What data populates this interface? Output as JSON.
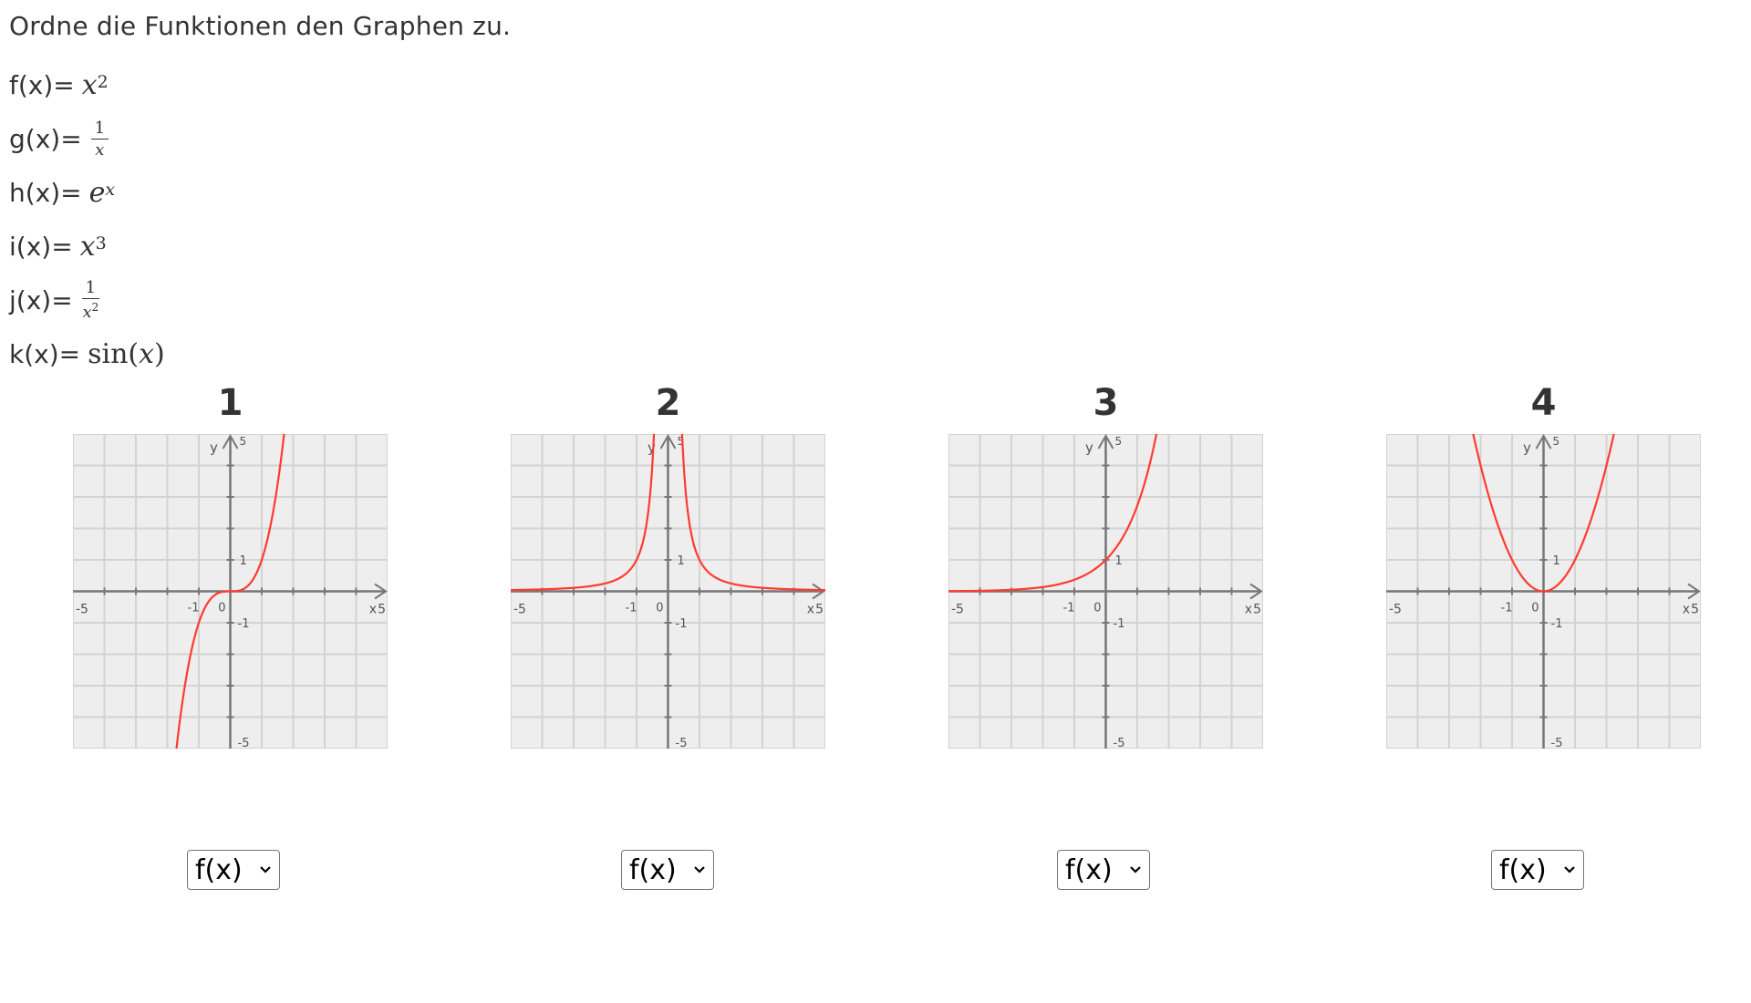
{
  "prompt": "Ordne die Funktionen den Graphen zu.",
  "functions": [
    {
      "label": "f(x)=",
      "expr": "x²"
    },
    {
      "label": "g(x)=",
      "expr": "1/x"
    },
    {
      "label": "h(x)=",
      "expr": "eˣ"
    },
    {
      "label": "i(x)=",
      "expr": "x³"
    },
    {
      "label": "j(x)=",
      "expr": "1/x²"
    },
    {
      "label": "k(x)=",
      "expr": "sin(x)"
    }
  ],
  "graphs": [
    {
      "title": "1",
      "curve": "cubic",
      "select_value": "f(x)"
    },
    {
      "title": "2",
      "curve": "inverse-square",
      "select_value": "f(x)"
    },
    {
      "title": "3",
      "curve": "exponential",
      "select_value": "f(x)"
    },
    {
      "title": "4",
      "curve": "square",
      "select_value": "f(x)"
    }
  ],
  "axis": {
    "x_label": "x",
    "y_label": "y",
    "tick_neg5": "-5",
    "tick_5": "5",
    "tick_neg1": "-1",
    "tick_1": "1",
    "tick_0": "0",
    "xlim": [
      -5,
      5
    ],
    "ylim": [
      -5,
      5
    ]
  },
  "colors": {
    "curve": "#ff3b30",
    "grid_bg": "#eeeeee",
    "grid_line": "#d3d3d3",
    "axis": "#777777"
  },
  "select_icon": "chevron-down-icon"
}
